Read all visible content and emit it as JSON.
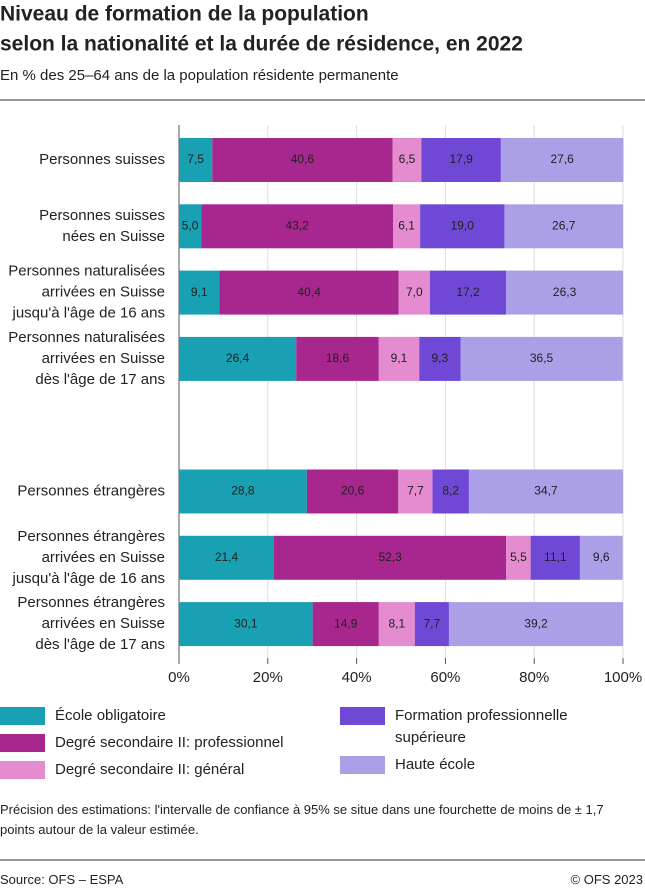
{
  "chart_data": {
    "type": "stacked-barh",
    "title": [
      "Niveau de formation de la population",
      "selon la nationalité et la durée de résidence, en 2022"
    ],
    "subtitle": "En % des 25–64 ans de la population résidente permanente",
    "categories": [
      [
        "Personnes suisses"
      ],
      [
        "Personnes suisses",
        "nées en Suisse"
      ],
      [
        "Personnes naturalisées",
        "arrivées en Suisse",
        "jusqu'à l'âge de 16 ans"
      ],
      [
        "Personnes naturalisées",
        "arrivées en Suisse",
        "dès l'âge de 17 ans"
      ],
      null,
      [
        "Personnes étrangères"
      ],
      [
        "Personnes étrangères",
        "arrivées en Suisse",
        "jusqu'à l'âge de 16 ans"
      ],
      [
        "Personnes étrangères",
        "arrivées en Suisse",
        "dès l'âge de 17 ans"
      ]
    ],
    "series": [
      {
        "name": "École obligatoire",
        "color": "#1aa0b3",
        "values": [
          7.5,
          5.0,
          9.1,
          26.4,
          null,
          28.8,
          21.4,
          30.1
        ],
        "value_labels": [
          "7,5",
          "5,0",
          "9,1",
          "26,4",
          null,
          "28,8",
          "21,4",
          "30,1"
        ]
      },
      {
        "name": "Degré secondaire II: professionnel",
        "color": "#a8278f",
        "values": [
          40.6,
          43.2,
          40.4,
          18.6,
          null,
          20.6,
          52.3,
          14.9
        ],
        "value_labels": [
          "40,6",
          "43,2",
          "40,4",
          "18,6",
          null,
          "20,6",
          "52,3",
          "14,9"
        ]
      },
      {
        "name": "Degré secondaire II: général",
        "color": "#e58bd0",
        "values": [
          6.5,
          6.1,
          7.0,
          9.1,
          null,
          7.7,
          5.5,
          8.1
        ],
        "value_labels": [
          "6,5",
          "6,1",
          "7,0",
          "9,1",
          null,
          "7,7",
          "5,5",
          "8,1"
        ]
      },
      {
        "name": "Formation professionnelle supérieure",
        "color": "#6f49d6",
        "values": [
          17.9,
          19.0,
          17.2,
          9.3,
          null,
          8.2,
          11.1,
          7.7
        ],
        "value_labels": [
          "17,9",
          "19,0",
          "17,2",
          "9,3",
          null,
          "8,2",
          "11,1",
          "7,7"
        ]
      },
      {
        "name": "Haute école",
        "color": "#ab9fe8",
        "values": [
          27.6,
          26.7,
          26.3,
          36.5,
          null,
          34.7,
          9.6,
          39.2
        ],
        "value_labels": [
          "27,6",
          "26,7",
          "26,3",
          "36,5",
          null,
          "34,7",
          "9,6",
          "39,2"
        ]
      }
    ],
    "xlim": [
      0,
      100
    ],
    "xticks": [
      {
        "value": 0,
        "label": "0%"
      },
      {
        "value": 20,
        "label": "20%"
      },
      {
        "value": 40,
        "label": "40%"
      },
      {
        "value": 60,
        "label": "60%"
      },
      {
        "value": 80,
        "label": "80%"
      },
      {
        "value": 100,
        "label": "100%"
      }
    ],
    "grid": true,
    "note": "Précision des estimations: l'intervalle de confiance à 95% se situe dans une fourchette de moins de ± 1,7 points autour de la valeur estimée.",
    "source": "Source: OFS – ESPA",
    "copyright": "© OFS 2023"
  }
}
